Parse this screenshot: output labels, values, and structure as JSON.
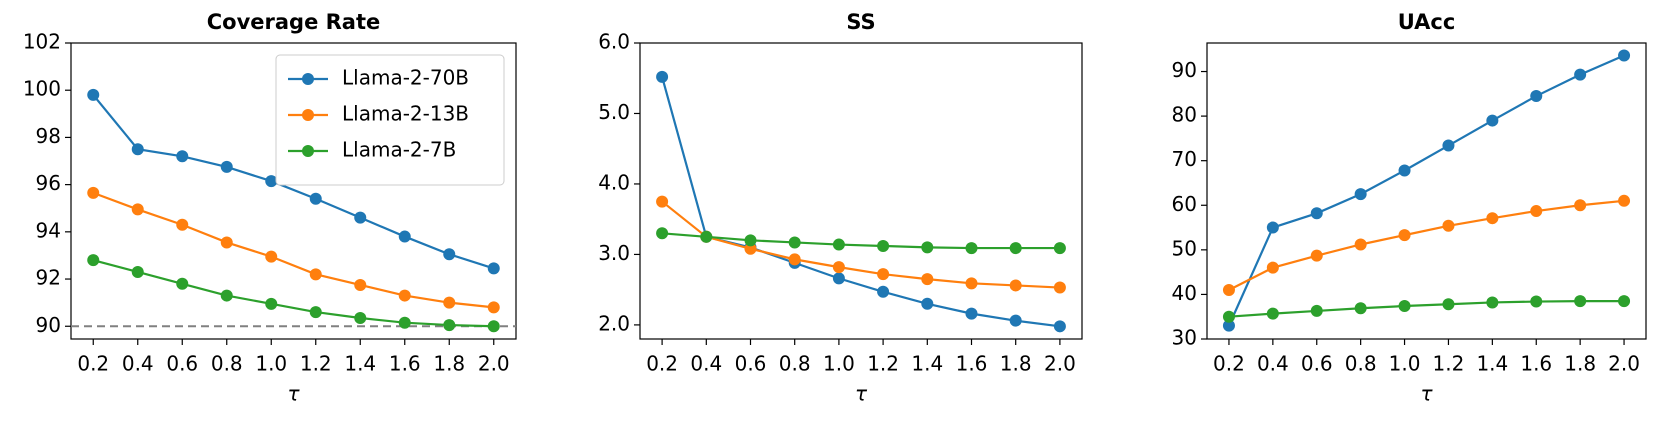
{
  "chart_data": [
    {
      "type": "line",
      "title": "Coverage Rate",
      "x_label": "τ",
      "x": [
        0.2,
        0.4,
        0.6,
        0.8,
        1.0,
        1.2,
        1.4,
        1.6,
        1.8,
        2.0
      ],
      "xlim": [
        0.1,
        2.1
      ],
      "xticks": [
        0.2,
        0.4,
        0.6,
        0.8,
        {
          "value": 1.0,
          "label": "1.0"
        },
        1.2,
        1.4,
        1.6,
        1.8,
        {
          "value": 2.0,
          "label": "2.0"
        }
      ],
      "ylim": [
        89.46,
        102
      ],
      "yticks": [
        90,
        92,
        94,
        96,
        98,
        100,
        102
      ],
      "reference_line": 90,
      "legend": "upper right",
      "series": [
        {
          "name": "Llama-2-70B",
          "color": "#1f77b4",
          "values": [
            99.8,
            97.5,
            97.2,
            96.75,
            96.15,
            95.4,
            94.6,
            93.8,
            93.05,
            92.45
          ]
        },
        {
          "name": "Llama-2-13B",
          "color": "#ff7f0e",
          "values": [
            95.65,
            94.95,
            94.3,
            93.55,
            92.95,
            92.2,
            91.75,
            91.3,
            91.0,
            90.8
          ]
        },
        {
          "name": "Llama-2-7B",
          "color": "#2ca02c",
          "values": [
            92.8,
            92.3,
            91.8,
            91.3,
            90.95,
            90.6,
            90.35,
            90.15,
            90.05,
            90.0
          ]
        }
      ]
    },
    {
      "type": "line",
      "title": "SS",
      "x_label": "τ",
      "x": [
        0.2,
        0.4,
        0.6,
        0.8,
        1.0,
        1.2,
        1.4,
        1.6,
        1.8,
        2.0
      ],
      "xlim": [
        0.1,
        2.1
      ],
      "xticks": [
        0.2,
        0.4,
        0.6,
        0.8,
        {
          "value": 1.0,
          "label": "1.0"
        },
        1.2,
        1.4,
        1.6,
        1.8,
        {
          "value": 2.0,
          "label": "2.0"
        }
      ],
      "ylim": [
        1.8,
        6.0
      ],
      "yticks": [
        {
          "value": 2.0,
          "label": "2.0"
        },
        {
          "value": 3.0,
          "label": "3.0"
        },
        {
          "value": 4.0,
          "label": "4.0"
        },
        {
          "value": 5.0,
          "label": "5.0"
        },
        {
          "value": 6.0,
          "label": "6.0"
        }
      ],
      "series": [
        {
          "color": "#1f77b4",
          "values": [
            5.52,
            3.25,
            3.1,
            2.88,
            2.66,
            2.47,
            2.3,
            2.16,
            2.06,
            1.98
          ]
        },
        {
          "color": "#ff7f0e",
          "values": [
            3.75,
            3.25,
            3.08,
            2.93,
            2.82,
            2.72,
            2.65,
            2.59,
            2.56,
            2.53
          ]
        },
        {
          "color": "#2ca02c",
          "values": [
            3.3,
            3.25,
            3.2,
            3.17,
            3.14,
            3.12,
            3.1,
            3.09,
            3.09,
            3.09
          ]
        }
      ]
    },
    {
      "type": "line",
      "title": "UAcc",
      "x_label": "τ",
      "x": [
        0.2,
        0.4,
        0.6,
        0.8,
        1.0,
        1.2,
        1.4,
        1.6,
        1.8,
        2.0
      ],
      "xlim": [
        0.1,
        2.1
      ],
      "xticks": [
        0.2,
        0.4,
        0.6,
        0.8,
        {
          "value": 1.0,
          "label": "1.0"
        },
        1.2,
        1.4,
        1.6,
        1.8,
        {
          "value": 2.0,
          "label": "2.0"
        }
      ],
      "ylim": [
        30,
        96.4
      ],
      "yticks": [
        30,
        40,
        50,
        60,
        70,
        80,
        90
      ],
      "series": [
        {
          "color": "#1f77b4",
          "values": [
            33,
            55,
            58.2,
            62.5,
            67.8,
            73.4,
            79,
            84.5,
            89.3,
            93.6
          ]
        },
        {
          "color": "#ff7f0e",
          "values": [
            41,
            46,
            48.7,
            51.2,
            53.3,
            55.4,
            57.1,
            58.7,
            60,
            61
          ]
        },
        {
          "color": "#2ca02c",
          "values": [
            35,
            35.7,
            36.3,
            36.9,
            37.4,
            37.8,
            38.2,
            38.4,
            38.5,
            38.5
          ]
        }
      ]
    }
  ]
}
